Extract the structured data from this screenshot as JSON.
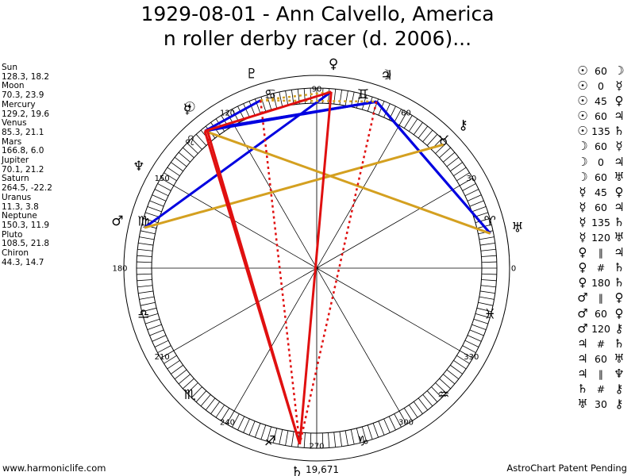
{
  "title": {
    "line1": "1929-08-01 - Ann Calvello, America",
    "line2": "n roller derby racer (d. 2006)..."
  },
  "planets": [
    {
      "name": "Sun",
      "values": "128.3, 18.2"
    },
    {
      "name": "Moon",
      "values": "70.3, 23.9"
    },
    {
      "name": "Mercury",
      "values": "129.2, 19.6"
    },
    {
      "name": "Venus",
      "values": "85.3, 21.1"
    },
    {
      "name": "Mars",
      "values": "166.8, 6.0"
    },
    {
      "name": "Jupiter",
      "values": "70.1, 21.2"
    },
    {
      "name": "Saturn",
      "values": "264.5, -22.2"
    },
    {
      "name": "Uranus",
      "values": "11.3, 3.8"
    },
    {
      "name": "Neptune",
      "values": "150.3, 11.9"
    },
    {
      "name": "Pluto",
      "values": "108.5, 21.8"
    },
    {
      "name": "Chiron",
      "values": "44.3, 14.7"
    }
  ],
  "aspects": [
    {
      "a": "☉",
      "v": "60",
      "b": "☽"
    },
    {
      "a": "☉",
      "v": "0",
      "b": "☿"
    },
    {
      "a": "☉",
      "v": "45",
      "b": "♀"
    },
    {
      "a": "☉",
      "v": "60",
      "b": "♃"
    },
    {
      "a": "☉",
      "v": "135",
      "b": "♄"
    },
    {
      "a": "☽",
      "v": "60",
      "b": "☿"
    },
    {
      "a": "☽",
      "v": "0",
      "b": "♃"
    },
    {
      "a": "☽",
      "v": "60",
      "b": "♅"
    },
    {
      "a": "☿",
      "v": "45",
      "b": "♀"
    },
    {
      "a": "☿",
      "v": "60",
      "b": "♃"
    },
    {
      "a": "☿",
      "v": "135",
      "b": "♄"
    },
    {
      "a": "☿",
      "v": "120",
      "b": "♅"
    },
    {
      "a": "♀",
      "v": "∥",
      "b": "♃"
    },
    {
      "a": "♀",
      "v": "#",
      "b": "♄"
    },
    {
      "a": "♀",
      "v": "180",
      "b": "♄"
    },
    {
      "a": "♂",
      "v": "∥",
      "b": "♀"
    },
    {
      "a": "♂",
      "v": "60",
      "b": "♀"
    },
    {
      "a": "♂",
      "v": "120",
      "b": "⚷"
    },
    {
      "a": "♃",
      "v": "#",
      "b": "♄"
    },
    {
      "a": "♃",
      "v": "60",
      "b": "♅"
    },
    {
      "a": "♃",
      "v": "∥",
      "b": "♆"
    },
    {
      "a": "♄",
      "v": "#",
      "b": "⚷"
    },
    {
      "a": "♅",
      "v": "30",
      "b": "⚷"
    }
  ],
  "wheel": {
    "degree_labels": [
      "0",
      "30",
      "60",
      "90",
      "120",
      "150",
      "180",
      "210",
      "240",
      "270",
      "300",
      "330"
    ],
    "signs": [
      {
        "glyph": "♈",
        "lon": 0
      },
      {
        "glyph": "♉",
        "lon": 30
      },
      {
        "glyph": "♊",
        "lon": 60
      },
      {
        "glyph": "♋",
        "lon": 90
      },
      {
        "glyph": "♌",
        "lon": 120
      },
      {
        "glyph": "♍",
        "lon": 150
      },
      {
        "glyph": "♎",
        "lon": 180
      },
      {
        "glyph": "♏",
        "lon": 210
      },
      {
        "glyph": "♐",
        "lon": 240
      },
      {
        "glyph": "♑",
        "lon": 270
      },
      {
        "glyph": "♒",
        "lon": 300
      },
      {
        "glyph": "♓",
        "lon": 330
      }
    ],
    "bodies": [
      {
        "name": "Sun",
        "glyph": "☉",
        "lon": 128.3
      },
      {
        "name": "Moon",
        "glyph": "☽",
        "lon": 70.3
      },
      {
        "name": "Mercury",
        "glyph": "☿",
        "lon": 129.2
      },
      {
        "name": "Venus",
        "glyph": "♀",
        "lon": 85.3
      },
      {
        "name": "Mars",
        "glyph": "♂",
        "lon": 166.8
      },
      {
        "name": "Jupiter",
        "glyph": "♃",
        "lon": 70.1
      },
      {
        "name": "Saturn",
        "glyph": "♄",
        "lon": 264.5
      },
      {
        "name": "Uranus",
        "glyph": "♅",
        "lon": 11.3
      },
      {
        "name": "Neptune",
        "glyph": "♆",
        "lon": 150.3
      },
      {
        "name": "Pluto",
        "glyph": "♇",
        "lon": 108.5
      },
      {
        "name": "Chiron",
        "glyph": "⚷",
        "lon": 44.3
      }
    ],
    "lines": [
      {
        "from": "Sun",
        "to": "Moon",
        "color": "#0000e0",
        "style": "solid"
      },
      {
        "from": "Mercury",
        "to": "Moon",
        "color": "#0000e0",
        "style": "solid"
      },
      {
        "from": "Sun",
        "to": "Jupiter",
        "color": "#0000e0",
        "style": "solid"
      },
      {
        "from": "Moon",
        "to": "Uranus",
        "color": "#0000e0",
        "style": "solid"
      },
      {
        "from": "Jupiter",
        "to": "Uranus",
        "color": "#0000e0",
        "style": "solid"
      },
      {
        "from": "Mars",
        "to": "Venus",
        "color": "#0000e0",
        "style": "solid"
      },
      {
        "from": "Mercury",
        "to": "Pluto",
        "color": "#0000e0",
        "style": "solid"
      },
      {
        "from": "Mercury",
        "to": "Uranus",
        "color": "#d4a020",
        "style": "solid"
      },
      {
        "from": "Mars",
        "to": "Chiron",
        "color": "#d4a020",
        "style": "solid"
      },
      {
        "from": "Pluto",
        "to": "Moon",
        "color": "#d4a020",
        "style": "dotted"
      },
      {
        "from": "Pluto",
        "to": "Venus",
        "color": "#d4a020",
        "style": "dotted"
      },
      {
        "from": "Sun",
        "to": "Saturn",
        "color": "#e01010",
        "style": "solid"
      },
      {
        "from": "Mercury",
        "to": "Saturn",
        "color": "#e01010",
        "style": "solid"
      },
      {
        "from": "Venus",
        "to": "Saturn",
        "color": "#e01010",
        "style": "solid"
      },
      {
        "from": "Mercury",
        "to": "Venus",
        "color": "#e01010",
        "style": "solid"
      },
      {
        "from": "Moon",
        "to": "Saturn",
        "color": "#e01010",
        "style": "dotted"
      },
      {
        "from": "Pluto",
        "to": "Saturn",
        "color": "#e01010",
        "style": "dotted"
      }
    ],
    "bottom_label": "19,671"
  },
  "footer": {
    "left": "www.harmoniclife.com",
    "right": "AstroChart Patent Pending"
  }
}
